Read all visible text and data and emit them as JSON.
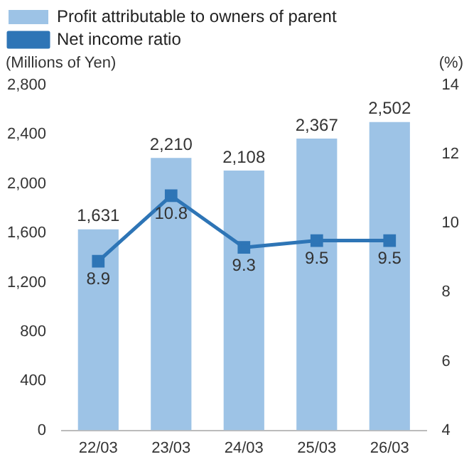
{
  "chart_data": {
    "type": "bar",
    "categories": [
      "22/03",
      "23/03",
      "24/03",
      "25/03",
      "26/03"
    ],
    "series": [
      {
        "name": "Profit attributable to owners of parent",
        "color": "#9dc3e6",
        "values": [
          1631,
          2210,
          2108,
          2367,
          2502
        ],
        "value_labels": [
          "1,631",
          "2,210",
          "2,108",
          "2,367",
          "2,502"
        ]
      },
      {
        "name": "Net income ratio",
        "type": "line",
        "axis": "y2",
        "color": "#2e75b6",
        "values": [
          8.9,
          10.8,
          9.3,
          9.5,
          9.5
        ],
        "value_labels": [
          "8.9",
          "10.8",
          "9.3",
          "9.5",
          "9.5"
        ]
      }
    ],
    "ylabel": "(Millions of Yen)",
    "y2label": "(%)",
    "ylim": [
      0,
      2800
    ],
    "yticks": [
      0,
      400,
      800,
      {
        "value": 1200,
        "label": "1,200"
      },
      {
        "value": 1600,
        "label": "1,600"
      },
      {
        "value": 2000,
        "label": "2,000"
      },
      {
        "value": 2400,
        "label": "2,400"
      },
      {
        "value": 2800,
        "label": "2,800"
      }
    ],
    "y2lim": [
      4,
      14
    ],
    "y2ticks": [
      4,
      6,
      8,
      10,
      12,
      14
    ],
    "legend": "top",
    "marker": "square",
    "line_style": "solid"
  }
}
